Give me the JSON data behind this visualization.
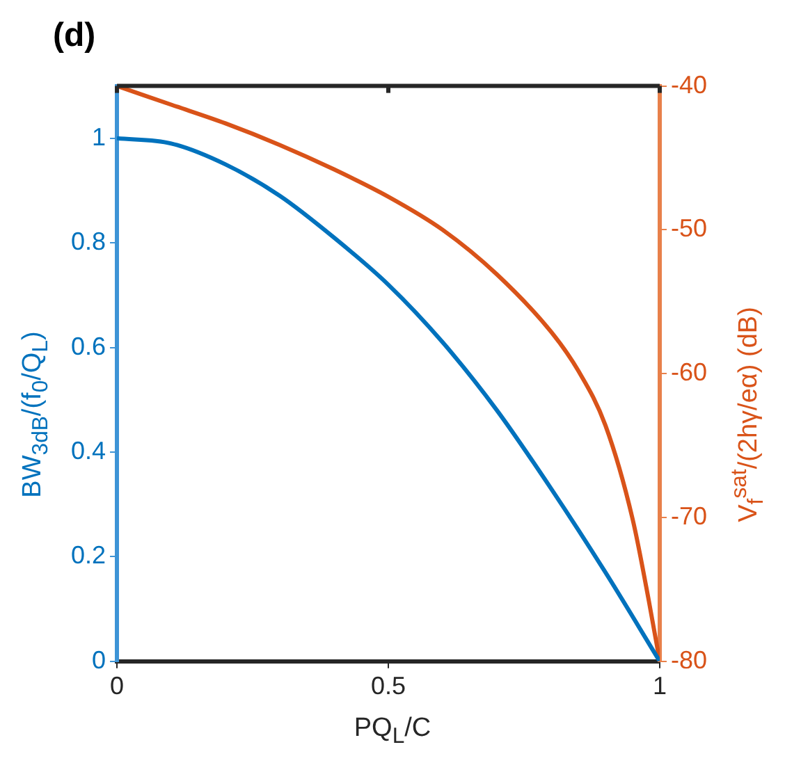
{
  "chart_data": {
    "type": "line",
    "title": "(d)",
    "xlabel": "PQ$_{L}$/C",
    "ylabel": "BW$_{3dB}$/(f$_{0}$/Q$_{L}$)",
    "y2label": "V$_{f}$$^{sat}$/(2hγ/eα) (dB)",
    "xlim": [
      0,
      1
    ],
    "xticks": [
      0,
      0.5,
      1
    ],
    "ylim": [
      0,
      1.1
    ],
    "yticks": [
      0,
      0.2,
      0.4,
      0.6,
      0.8,
      1
    ],
    "y2lim": [
      -80,
      -40
    ],
    "y2ticks": [
      -80,
      -70,
      -60,
      -50,
      -40
    ],
    "grid": false,
    "legend": false,
    "marker": "none",
    "line_style": "solid",
    "series": [
      {
        "color": "#0072bd",
        "x": [
          0,
          0.1,
          0.2,
          0.3,
          0.4,
          0.5,
          0.6,
          0.7,
          0.8,
          0.9,
          1
        ],
        "values": [
          1,
          0.99,
          0.95,
          0.89,
          0.81,
          0.72,
          0.61,
          0.48,
          0.33,
          0.17,
          0
        ]
      },
      {
        "color": "#d95319",
        "axis": "y2",
        "x": [
          0,
          0.1,
          0.2,
          0.3,
          0.4,
          0.5,
          0.6,
          0.7,
          0.8,
          0.85,
          0.9,
          0.95,
          0.98,
          1
        ],
        "values": [
          -40,
          -41.3,
          -42.6,
          -44.1,
          -45.8,
          -47.7,
          -50,
          -53.1,
          -57.1,
          -59.8,
          -63.6,
          -70.1,
          -75.8,
          -80
        ]
      }
    ]
  }
}
